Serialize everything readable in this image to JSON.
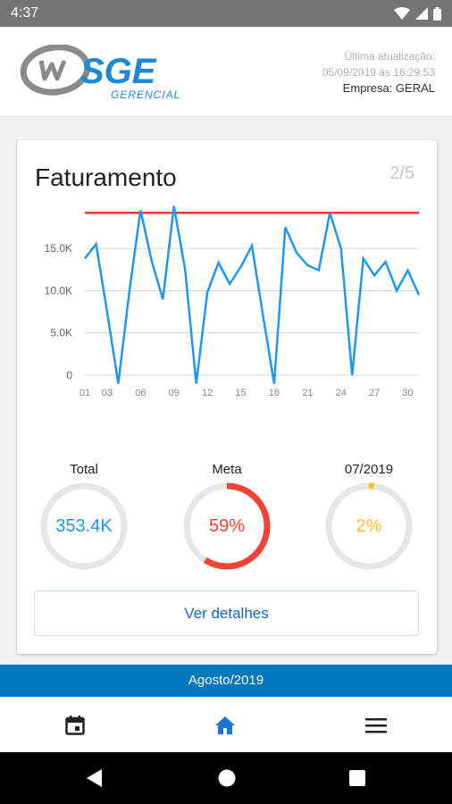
{
  "status_bar": {
    "time": "4:37"
  },
  "header": {
    "logo_text": "SGE",
    "logo_subtitle": "GERENCIAL",
    "last_update_label": "Última atualização:",
    "last_update_value": "05/09/2019 às 16:29:53",
    "company": "Empresa: GERAL"
  },
  "card": {
    "title": "Faturamento",
    "page_indicator": "2/5",
    "details_button": "Ver detalhes"
  },
  "chart_data": {
    "type": "line",
    "title": "Faturamento",
    "x_tick_labels": [
      "01",
      "03",
      "06",
      "09",
      "12",
      "15",
      "18",
      "21",
      "24",
      "27",
      "30"
    ],
    "y_tick_labels": [
      "0",
      "5.0K",
      "10.0K",
      "15.0K"
    ],
    "ylim": [
      0,
      20500
    ],
    "grid": true,
    "series": [
      {
        "color": "#2196f3",
        "x": [
          1,
          2,
          3,
          4,
          5,
          6,
          7,
          8,
          9,
          10,
          11,
          12,
          13,
          14,
          15,
          16,
          17,
          18,
          19,
          20,
          21,
          22,
          23,
          24,
          25,
          26,
          27,
          28,
          29,
          30,
          31
        ],
        "values": [
          13800,
          15500,
          7500,
          -1000,
          10000,
          19500,
          13500,
          9000,
          20000,
          12500,
          -1000,
          9800,
          13300,
          10800,
          12800,
          15300,
          7000,
          -1000,
          17500,
          14500,
          13000,
          12400,
          19200,
          15000,
          0,
          13800,
          11800,
          13400,
          10000,
          12400,
          9500
        ]
      }
    ],
    "target_line": {
      "value": 19200,
      "color": "#e53935"
    }
  },
  "gauges": {
    "total": {
      "label": "Total",
      "value": "353.4K",
      "color": "#2196f3",
      "fraction": 0
    },
    "meta": {
      "label": "Meta",
      "value": "59%",
      "color": "#f44336",
      "fraction": 0.59
    },
    "month": {
      "label": "07/2019",
      "value": "2%",
      "color": "#fbc02d",
      "fraction": 0.02
    }
  },
  "period": {
    "label": "Agosto/2019"
  },
  "bottom_nav": [
    {
      "icon": "calendar-icon"
    },
    {
      "icon": "home-icon",
      "active": true
    },
    {
      "icon": "menu-icon"
    }
  ],
  "colors": {
    "accent_blue": "#0277bd",
    "nav_active": "#1976d2",
    "line_blue": "#2196f3",
    "target_red": "#e53935"
  }
}
